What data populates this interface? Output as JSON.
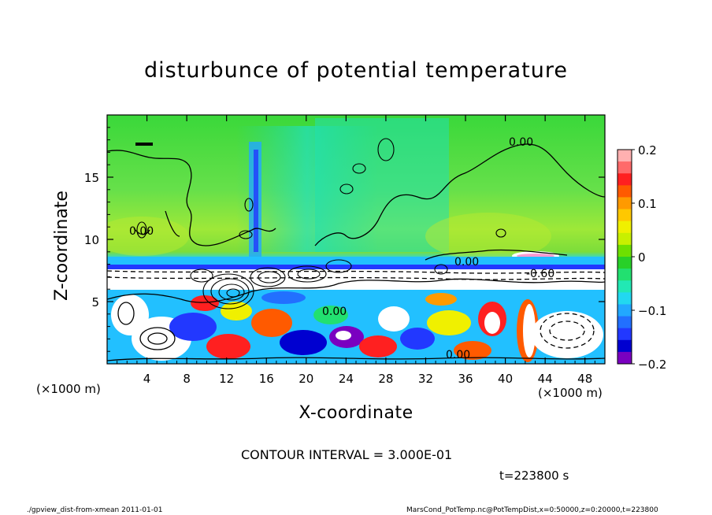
{
  "chart_data": {
    "type": "heatmap",
    "title": "disturbunce of potential temperature",
    "xlabel": "X-coordinate",
    "ylabel": "Z-coordinate",
    "x_unit": "(×1000 m)",
    "y_unit": "(×1000 m)",
    "xlim": [
      0,
      50
    ],
    "ylim": [
      0,
      20
    ],
    "x_ticks": [
      4,
      8,
      12,
      16,
      20,
      24,
      28,
      32,
      36,
      40,
      44,
      48
    ],
    "y_ticks": [
      5,
      10,
      15
    ],
    "colorbar": {
      "range": [
        -0.2,
        0.2
      ],
      "tick_labels": [
        "0.2",
        "0.1",
        "0",
        "−0.1",
        "−0.2"
      ],
      "colors": [
        "#ffb0b0",
        "#ff6a6a",
        "#ff2020",
        "#ff5a00",
        "#ff9a00",
        "#ffc800",
        "#f0f000",
        "#c8f000",
        "#6ee000",
        "#28d028",
        "#22e070",
        "#22e8b4",
        "#22d8f0",
        "#22a8ff",
        "#2270ff",
        "#2238ff",
        "#0000d0",
        "#7a00c0"
      ]
    },
    "contour_labels": [
      "0.00",
      "0.00",
      "0.00",
      "0.00",
      "-0.60",
      "0.00"
    ],
    "contour_interval": "CONTOUR INTERVAL = 3.000E-01",
    "time_label": "t=223800 s"
  },
  "footer": {
    "left": "./gpview_dist-from-xmean   2011-01-01",
    "right": "MarsCond_PotTemp.nc@PotTempDist,x=0:50000,z=0:20000,t=223800"
  }
}
